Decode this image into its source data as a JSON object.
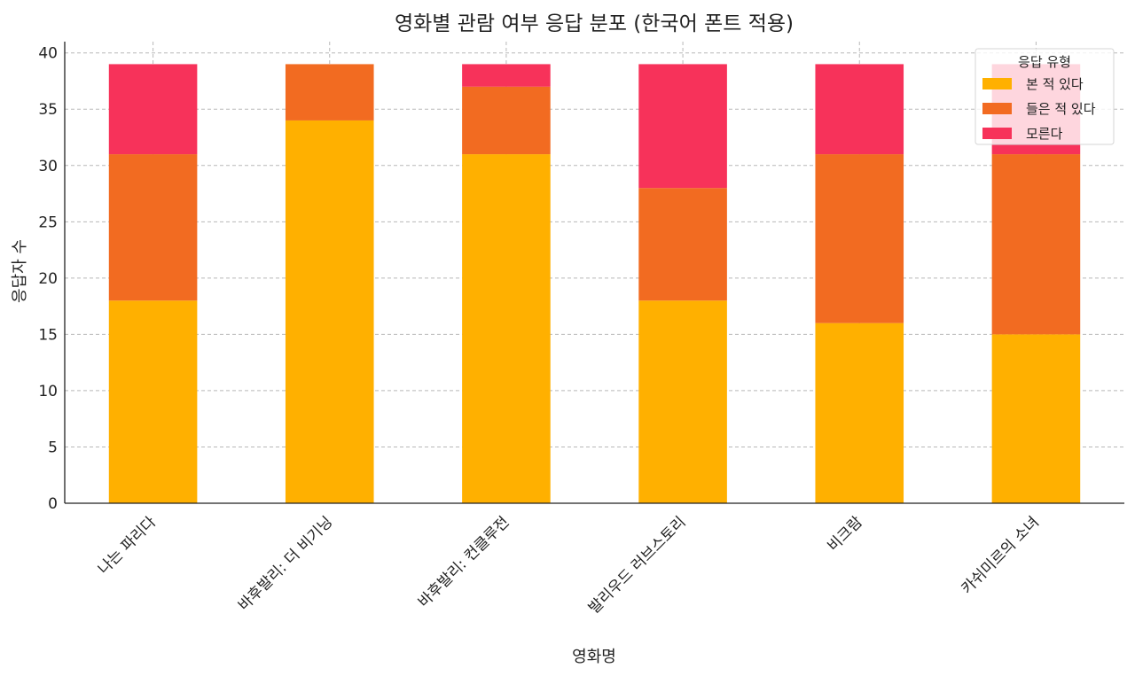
{
  "chart_data": {
    "type": "bar",
    "stacked": true,
    "title": "영화별 관람 여부 응답 분포 (한국어 폰트 적용)",
    "xlabel": "영화명",
    "ylabel": "응답자 수",
    "categories": [
      "나는 파리다",
      "바후발리: 더 비기닝",
      "바후발리: 컨클루전",
      "발리우드 러브스토리",
      "비크람",
      "카쉬미르의 소녀"
    ],
    "series": [
      {
        "name": "본 적 있다",
        "color": "#FFB000",
        "values": [
          18,
          34,
          31,
          18,
          16,
          15
        ]
      },
      {
        "name": "들은 적 있다",
        "color": "#F26B21",
        "values": [
          13,
          5,
          6,
          10,
          15,
          16
        ]
      },
      {
        "name": "모른다",
        "color": "#F7325A",
        "values": [
          8,
          0,
          2,
          11,
          8,
          8
        ]
      }
    ],
    "ylim": [
      0,
      41
    ],
    "yticks": [
      0,
      5,
      10,
      15,
      20,
      25,
      30,
      35,
      40
    ],
    "grid": true,
    "legend": {
      "title": "응답 유형",
      "position": "top-right"
    }
  }
}
